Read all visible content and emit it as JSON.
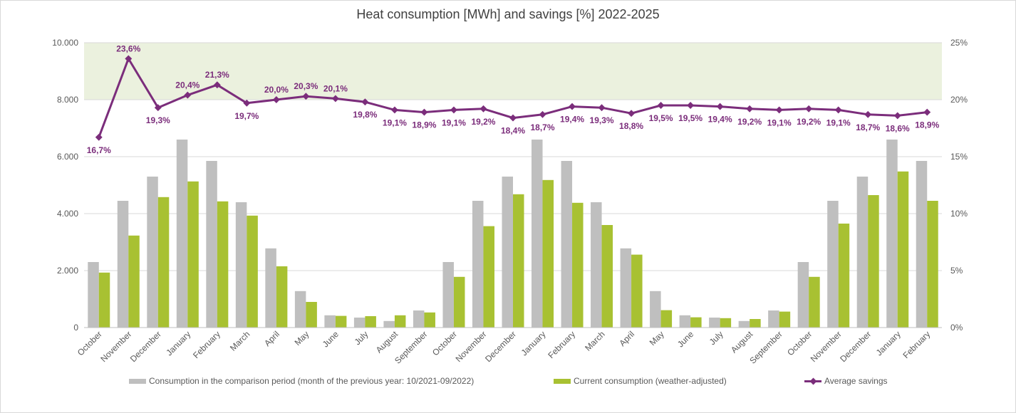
{
  "chart_data": {
    "type": "bar",
    "title": "Heat consumption [MWh] and savings [%] 2022-2025",
    "categories": [
      "October",
      "November",
      "December",
      "January",
      "February",
      "March",
      "April",
      "May",
      "June",
      "July",
      "August",
      "September",
      "October",
      "November",
      "December",
      "January",
      "February",
      "March",
      "April",
      "May",
      "June",
      "July",
      "August",
      "September",
      "October",
      "November",
      "December",
      "January",
      "February"
    ],
    "y_left": {
      "min": 0,
      "max": 10000,
      "ticks": [
        "0",
        "2.000",
        "4.000",
        "6.000",
        "8.000",
        "10.000"
      ],
      "tick_values": [
        0,
        2000,
        4000,
        6000,
        8000,
        10000
      ]
    },
    "y_right": {
      "min": 0,
      "max": 25,
      "ticks": [
        "0%",
        "5%",
        "10%",
        "15%",
        "20%",
        "25%"
      ],
      "tick_values": [
        0,
        5,
        10,
        15,
        20,
        25
      ]
    },
    "target_band": {
      "from_percent": 20,
      "to_percent": 25,
      "color": "#ebf1de"
    },
    "series": [
      {
        "name": "Consumption in the comparison period (month of the previous year: 10/2021-09/2022)",
        "type": "bar",
        "axis": "left",
        "color": "#bfbfbf",
        "values": [
          2300,
          4450,
          5300,
          6600,
          5850,
          4400,
          2780,
          1280,
          430,
          350,
          230,
          600,
          2300,
          4450,
          5300,
          6600,
          5850,
          4400,
          2780,
          1280,
          430,
          350,
          230,
          600,
          2300,
          4450,
          5300,
          6600,
          5850
        ]
      },
      {
        "name": "Current consumption (weather-adjusted)",
        "type": "bar",
        "axis": "left",
        "color": "#a8c132",
        "values": [
          1930,
          3230,
          4580,
          5130,
          4430,
          3930,
          2150,
          900,
          410,
          400,
          430,
          530,
          1780,
          3560,
          4680,
          5180,
          4380,
          3600,
          2560,
          610,
          360,
          330,
          300,
          560,
          1780,
          3650,
          4650,
          5480,
          4450
        ]
      },
      {
        "name": "Average savings",
        "type": "line",
        "axis": "right",
        "color": "#7b2d7b",
        "values": [
          16.7,
          23.6,
          19.3,
          20.4,
          21.3,
          19.7,
          20.0,
          20.3,
          20.1,
          19.8,
          19.1,
          18.9,
          19.1,
          19.2,
          18.4,
          18.7,
          19.4,
          19.3,
          18.8,
          19.5,
          19.5,
          19.4,
          19.2,
          19.1,
          19.2,
          19.1,
          18.7,
          18.6,
          18.9
        ],
        "labels": [
          "16,7%",
          "23,6%",
          "19,3%",
          "20,4%",
          "21,3%",
          "19,7%",
          "20,0%",
          "20,3%",
          "20,1%",
          "19,8%",
          "19,1%",
          "18,9%",
          "19,1%",
          "19,2%",
          "18,4%",
          "18,7%",
          "19,4%",
          "19,3%",
          "18,8%",
          "19,5%",
          "19,5%",
          "19,4%",
          "19,2%",
          "19,1%",
          "19,2%",
          "19,1%",
          "18,7%",
          "18,6%",
          "18,9%"
        ],
        "label_positions": [
          "below",
          "above",
          "below",
          "above",
          "above",
          "below",
          "above",
          "above",
          "above",
          "below",
          "below",
          "below",
          "below",
          "below",
          "below",
          "below",
          "below",
          "below",
          "below",
          "below",
          "below",
          "below",
          "below",
          "below",
          "below",
          "below",
          "below",
          "below",
          "below"
        ]
      }
    ],
    "grid": true,
    "legend_position": "bottom"
  }
}
